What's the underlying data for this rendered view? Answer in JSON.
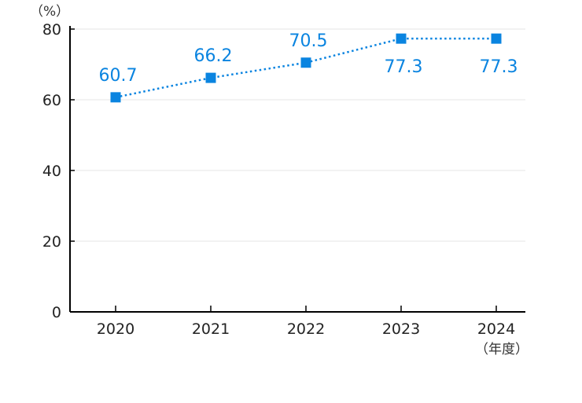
{
  "chart_data": {
    "type": "line",
    "categories": [
      "2020",
      "2021",
      "2022",
      "2023",
      "2024"
    ],
    "series": [
      {
        "values": [
          60.7,
          66.2,
          70.5,
          77.3,
          77.3
        ]
      }
    ],
    "data_labels": [
      "60.7",
      "66.2",
      "70.5",
      "77.3",
      "77.3"
    ],
    "y_unit_label": "（%）",
    "x_unit_label": "（年度）",
    "ylim": [
      0,
      80
    ],
    "yticks": [
      0,
      20,
      40,
      60,
      80
    ],
    "grid": true,
    "line_style": "dotted",
    "marker": "square",
    "color": "#0A84E0"
  }
}
